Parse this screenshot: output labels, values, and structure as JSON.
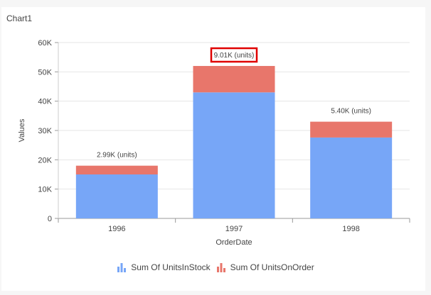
{
  "title": "Chart1",
  "colors": {
    "instock": "#77a6f7",
    "onorder": "#e8766b",
    "highlight": "#e00000",
    "grid": "#e6e6e6",
    "axis": "#999999",
    "text": "#444444"
  },
  "chart_data": {
    "type": "bar",
    "stacked": true,
    "categories": [
      "1996",
      "1997",
      "1998"
    ],
    "series": [
      {
        "name": "Sum Of UnitsInStock",
        "values": [
          15000,
          43000,
          27600
        ]
      },
      {
        "name": "Sum Of UnitsOnOrder",
        "values": [
          2990,
          9010,
          5400
        ]
      }
    ],
    "data_labels": [
      "2.99K (units)",
      "9.01K (units)",
      "5.40K (units)"
    ],
    "highlighted_label_index": 1,
    "xlabel": "OrderDate",
    "ylabel": "Values",
    "ylim": [
      0,
      60000
    ],
    "yticks": [
      0,
      10000,
      20000,
      30000,
      40000,
      50000,
      60000
    ],
    "ytick_labels": [
      "0",
      "10K",
      "20K",
      "30K",
      "40K",
      "50K",
      "60K"
    ],
    "grid": true,
    "legend_position": "bottom"
  }
}
